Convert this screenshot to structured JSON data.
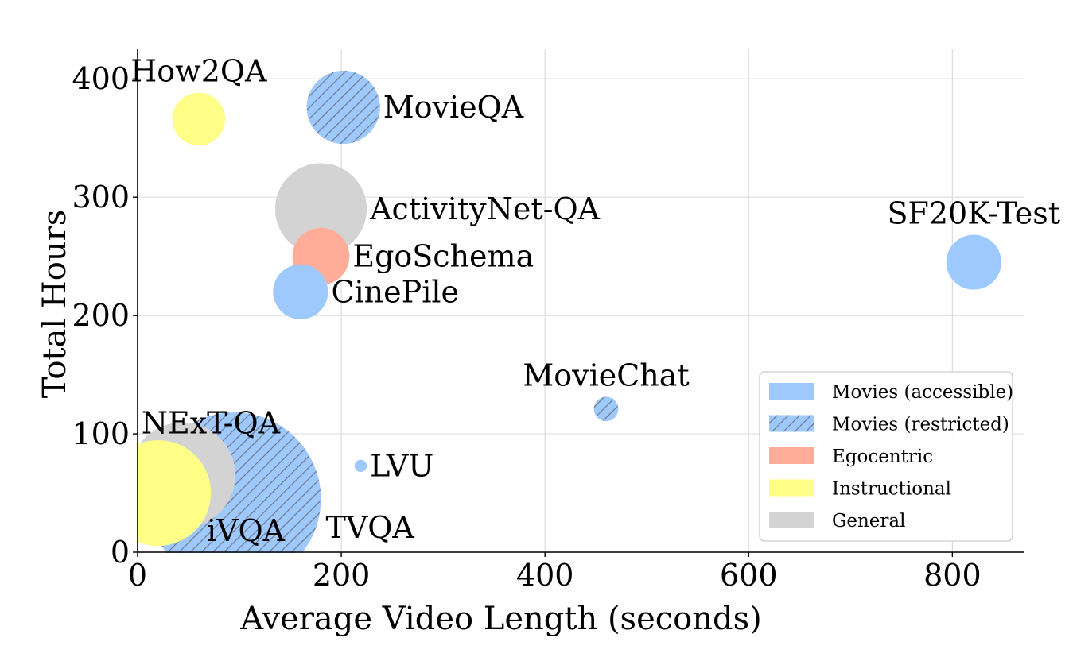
{
  "chart_data": {
    "type": "scatter",
    "xlabel": "Average Video Length (seconds)",
    "ylabel": "Total Hours",
    "xlim": [
      0,
      870
    ],
    "ylim": [
      0,
      425
    ],
    "xticks": [
      0,
      200,
      400,
      600,
      800
    ],
    "yticks": [
      0,
      100,
      200,
      300,
      400
    ],
    "grid": true,
    "legend_position": "lower-right",
    "categories": [
      {
        "key": "movies_accessible",
        "label": "Movies (accessible)",
        "color": "#9ec9ff",
        "hatch": false
      },
      {
        "key": "movies_restricted",
        "label": "Movies (restricted)",
        "color": "#9ec9ff",
        "hatch": true
      },
      {
        "key": "egocentric",
        "label": "Egocentric",
        "color": "#ffac98",
        "hatch": false
      },
      {
        "key": "instructional",
        "label": "Instructional",
        "color": "#ffff88",
        "hatch": false
      },
      {
        "key": "general",
        "label": "General",
        "color": "#d3d3d3",
        "hatch": false
      }
    ],
    "points": [
      {
        "label": "TVQA",
        "x": 95,
        "y": 45,
        "radius_x": 85,
        "category": "movies_restricted",
        "label_pos": "lower-right"
      },
      {
        "label": "NExT-QA",
        "x": 44,
        "y": 65,
        "radius_x": 52,
        "category": "general",
        "label_pos": "upper-right"
      },
      {
        "label": "iVQA",
        "x": 20,
        "y": 50,
        "radius_x": 52,
        "category": "instructional",
        "label_pos": "lower-right"
      },
      {
        "label": "How2QA",
        "x": 60,
        "y": 366,
        "radius_x": 26,
        "category": "instructional",
        "label_pos": "top"
      },
      {
        "label": "MovieQA",
        "x": 202,
        "y": 376,
        "radius_x": 36,
        "category": "movies_restricted",
        "label_pos": "right"
      },
      {
        "label": "ActivityNet-QA",
        "x": 180,
        "y": 290,
        "radius_x": 45,
        "category": "general",
        "label_pos": "right"
      },
      {
        "label": "EgoSchema",
        "x": 180,
        "y": 250,
        "radius_x": 28,
        "category": "egocentric",
        "label_pos": "right"
      },
      {
        "label": "CinePile",
        "x": 160,
        "y": 220,
        "radius_x": 27,
        "category": "movies_accessible",
        "label_pos": "right"
      },
      {
        "label": "LVU",
        "x": 219,
        "y": 73,
        "radius_x": 6,
        "category": "movies_accessible",
        "label_pos": "right"
      },
      {
        "label": "MovieChat",
        "x": 460,
        "y": 121,
        "radius_x": 12,
        "category": "movies_restricted",
        "label_pos": "top"
      },
      {
        "label": "SF20K-Test",
        "x": 821,
        "y": 245,
        "radius_x": 27,
        "category": "movies_accessible",
        "label_pos": "top"
      }
    ]
  }
}
